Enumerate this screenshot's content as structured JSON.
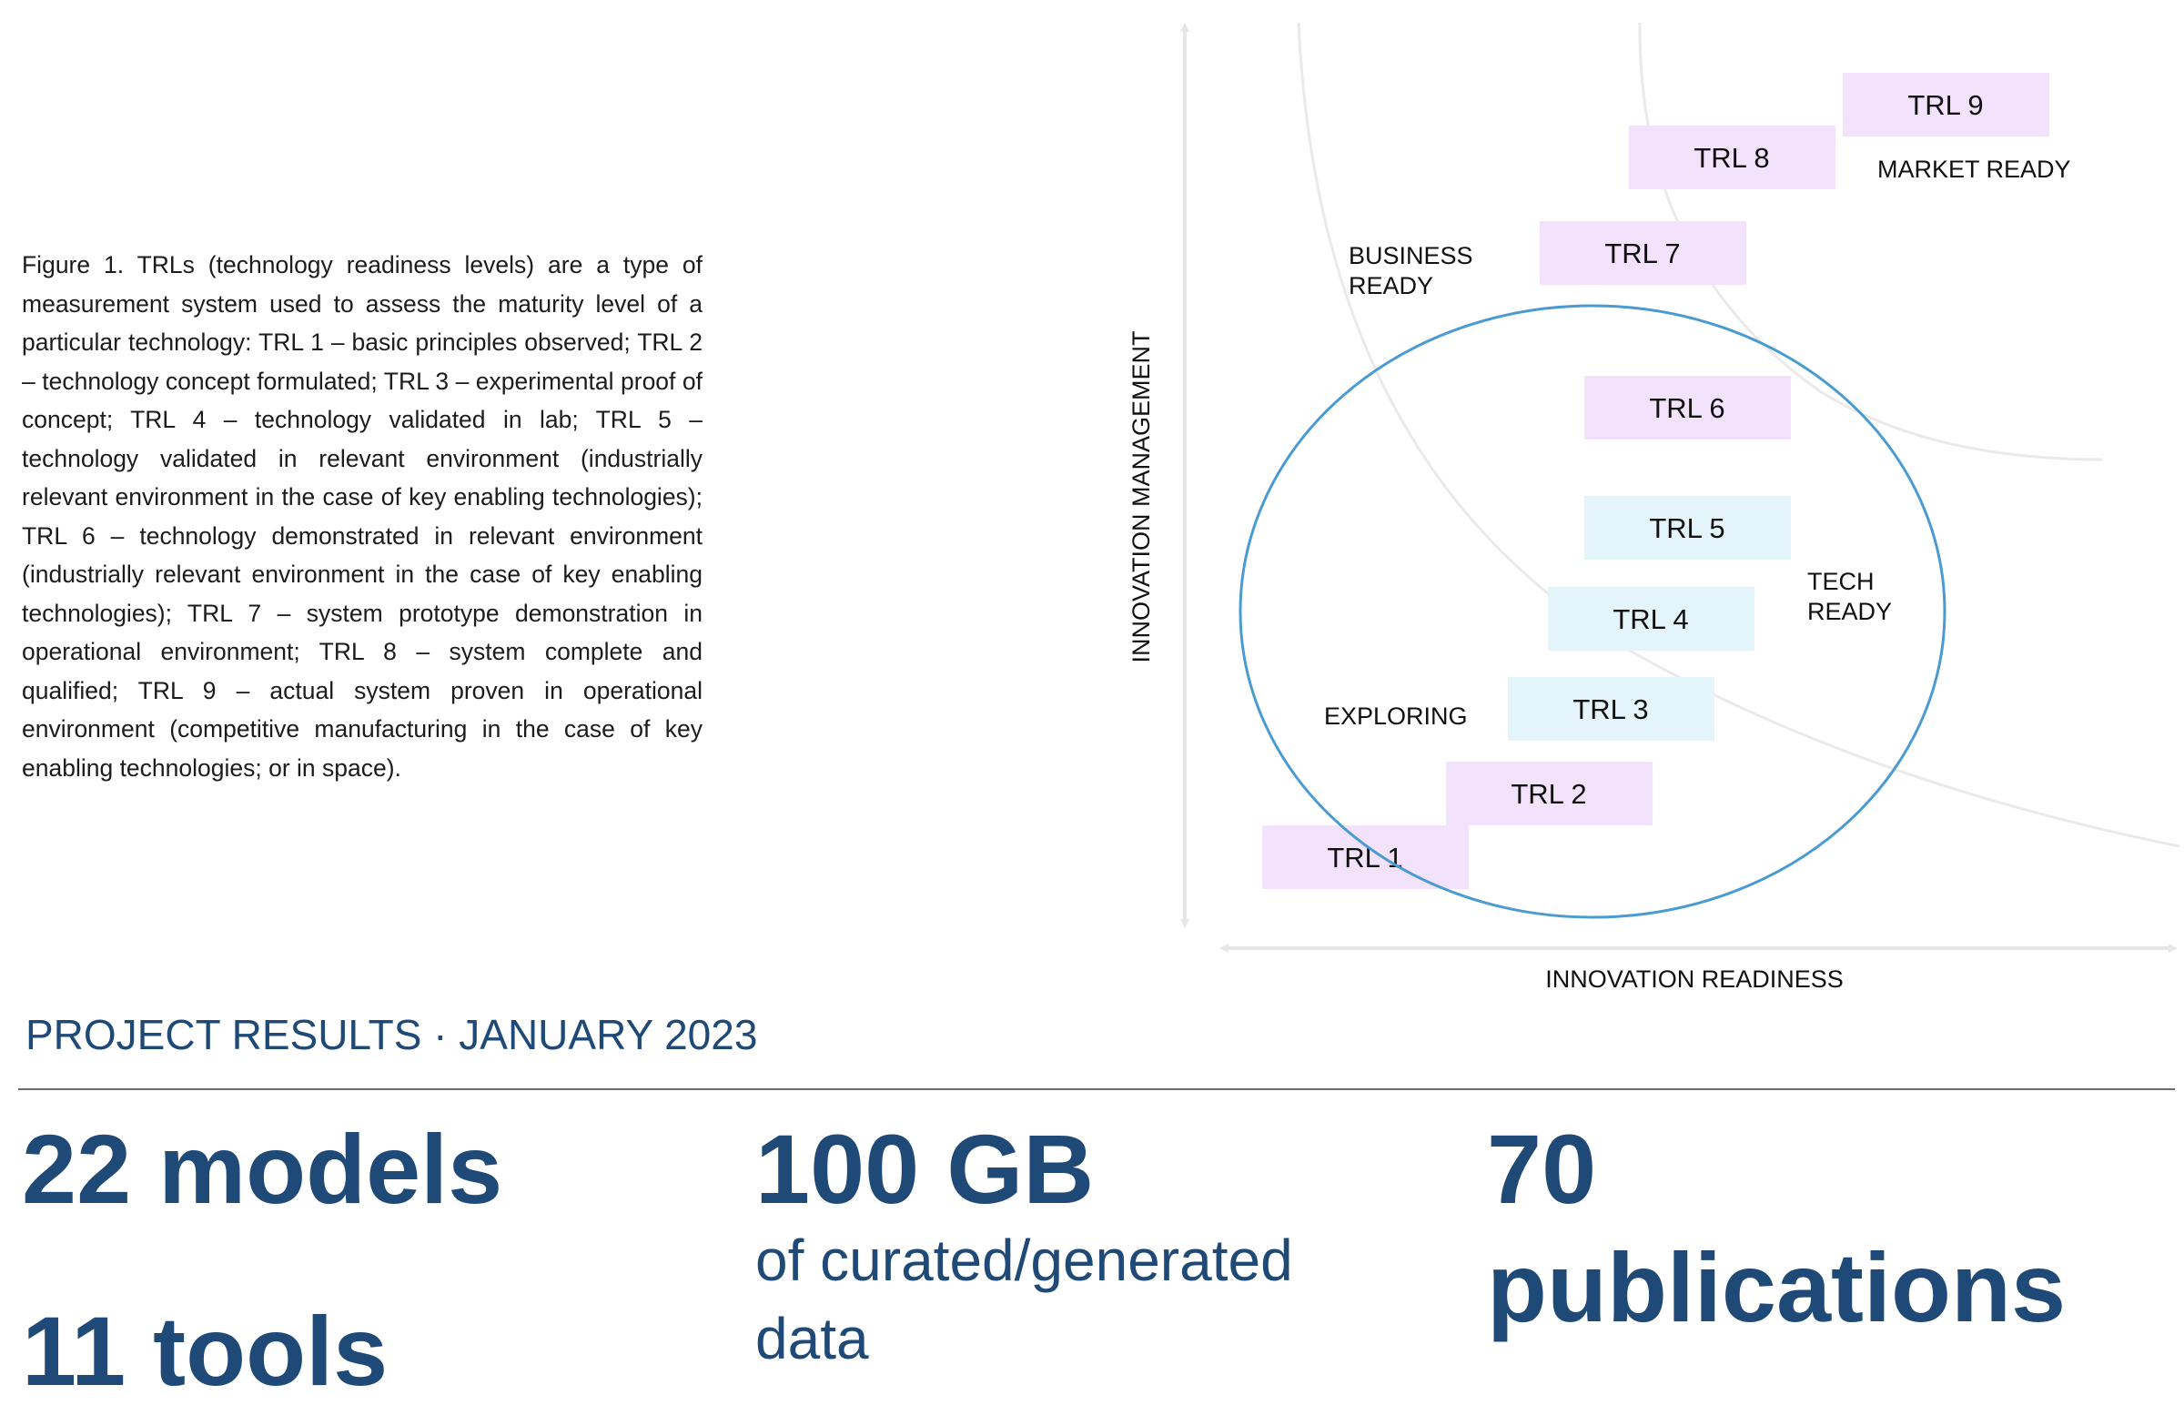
{
  "caption": "Figure 1. TRLs (technology readiness levels) are a type of measurement system used to assess the maturity level of a particular technology: TRL 1 – basic principles observed; TRL 2 – technology concept formulated; TRL 3 – experimental proof of concept; TRL 4 – technology validated in lab; TRL 5 – technology validated in relevant environment (industrially relevant environment in the case of key enabling technologies); TRL 6 – technology demonstrated in relevant environment (industrially relevant environment in the case of key enabling technologies); TRL 7 – system prototype demonstration in operational environment; TRL 8 – system complete and qualified; TRL 9 – actual system proven in operational environment (competitive manufacturing in the case of key enabling technologies; or in space).",
  "diagram": {
    "y_axis_label": "INNOVATION MANAGEMENT",
    "x_axis_label": "INNOVATION READINESS",
    "regions": {
      "exploring": "EXPLORING",
      "tech_ready_1": "TECH",
      "tech_ready_2": "READY",
      "business_ready_1": "BUSINESS",
      "business_ready_2": "READY",
      "market_ready": "MARKET READY"
    },
    "levels": [
      {
        "label": "TRL 1",
        "color": "#f3e2fb"
      },
      {
        "label": "TRL 2",
        "color": "#f3e2fb"
      },
      {
        "label": "TRL 3",
        "color": "#e3f4fb"
      },
      {
        "label": "TRL 4",
        "color": "#e3f4fb"
      },
      {
        "label": "TRL 5",
        "color": "#e3f4fb"
      },
      {
        "label": "TRL 6",
        "color": "#f3e2fb"
      },
      {
        "label": "TRL 7",
        "color": "#f3e2fb"
      },
      {
        "label": "TRL 8",
        "color": "#f3e2fb"
      },
      {
        "label": "TRL 9",
        "color": "#f3e2fb"
      }
    ],
    "ellipse_color": "#4a9bd1"
  },
  "results": {
    "title": "PROJECT RESULTS · JANUARY 2023",
    "models": "22 models",
    "tools": "11 tools",
    "data_amount": "100 GB",
    "data_desc_1": "of curated/generated",
    "data_desc_2": "data",
    "publications_count": "70",
    "publications_label": "publications"
  },
  "colors": {
    "accent": "#1f4a78",
    "purple_box": "#f3e2fb",
    "blue_box": "#e3f4fb"
  }
}
